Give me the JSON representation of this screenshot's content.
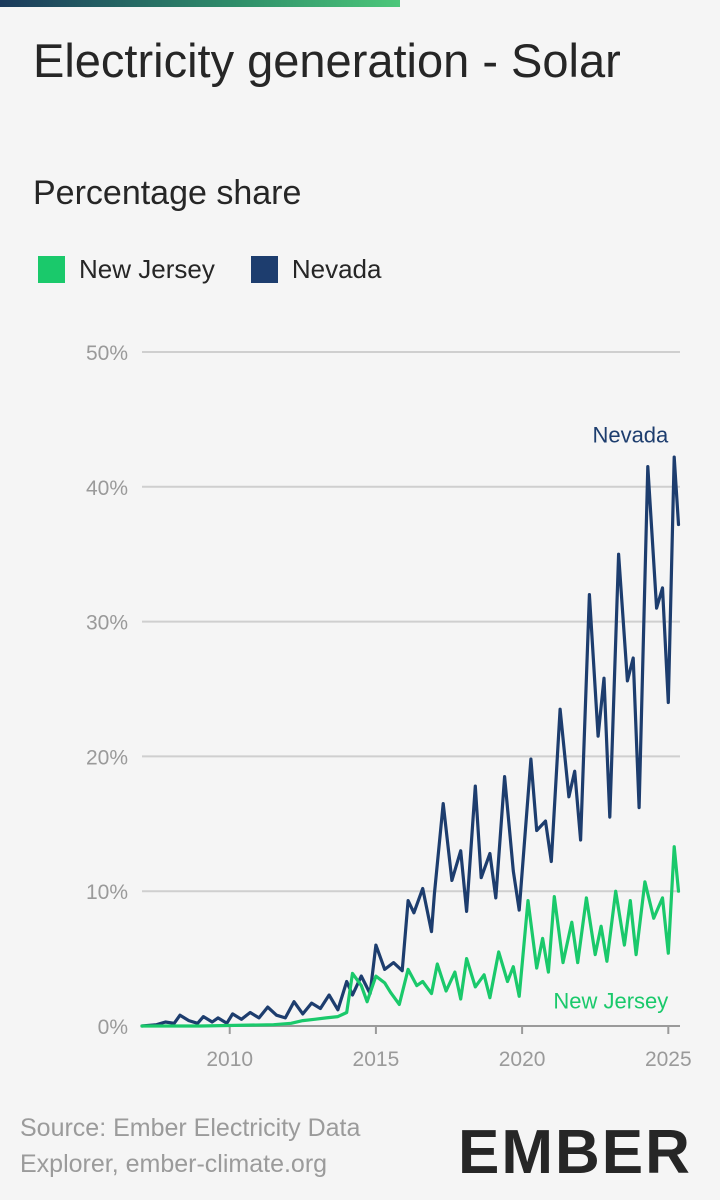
{
  "title": "Electricity generation - Solar",
  "subtitle": "Percentage share",
  "legend": [
    {
      "label": "New Jersey",
      "color": "#1ac96b"
    },
    {
      "label": "Nevada",
      "color": "#1d3d6e"
    }
  ],
  "source": "Source: Ember Electricity Data Explorer, ember-climate.org",
  "logo": "EMBER",
  "chart_data": {
    "type": "line",
    "title": "Electricity generation - Solar",
    "ylabel": "Percentage share",
    "xlabel": "",
    "ylim": [
      0,
      50
    ],
    "xlim": [
      2007.0,
      2025.4
    ],
    "y_ticks": [
      "0%",
      "10%",
      "20%",
      "30%",
      "40%",
      "50%"
    ],
    "y_tick_values": [
      0,
      10,
      20,
      30,
      40,
      50
    ],
    "x_ticks": [
      "2010",
      "2015",
      "2020",
      "2025"
    ],
    "x_tick_values": [
      2010,
      2015,
      2020,
      2025
    ],
    "grid": true,
    "series": [
      {
        "name": "Nevada",
        "color": "#1d3d6e",
        "x": [
          2007.0,
          2007.5,
          2007.8,
          2008.1,
          2008.3,
          2008.6,
          2008.9,
          2009.1,
          2009.4,
          2009.6,
          2009.9,
          2010.1,
          2010.4,
          2010.7,
          2011.0,
          2011.3,
          2011.6,
          2011.9,
          2012.2,
          2012.5,
          2012.8,
          2013.1,
          2013.4,
          2013.7,
          2014.0,
          2014.2,
          2014.5,
          2014.8,
          2015.0,
          2015.3,
          2015.6,
          2015.9,
          2016.1,
          2016.3,
          2016.6,
          2016.9,
          2017.0,
          2017.3,
          2017.6,
          2017.9,
          2018.1,
          2018.4,
          2018.6,
          2018.9,
          2019.1,
          2019.4,
          2019.7,
          2019.9,
          2020.3,
          2020.5,
          2020.8,
          2021.0,
          2021.3,
          2021.6,
          2021.8,
          2022.0,
          2022.3,
          2022.6,
          2022.8,
          2023.0,
          2023.3,
          2023.6,
          2023.8,
          2024.0,
          2024.3,
          2024.6,
          2024.8,
          2025.0,
          2025.2,
          2025.35
        ],
        "values": [
          0.0,
          0.1,
          0.3,
          0.2,
          0.8,
          0.4,
          0.2,
          0.7,
          0.3,
          0.6,
          0.2,
          0.9,
          0.5,
          1.0,
          0.6,
          1.4,
          0.8,
          0.6,
          1.8,
          0.9,
          1.7,
          1.3,
          2.3,
          1.2,
          3.3,
          2.3,
          3.7,
          2.4,
          6.0,
          4.2,
          4.7,
          4.1,
          9.3,
          8.4,
          10.2,
          7.0,
          9.8,
          16.5,
          10.8,
          13.0,
          8.5,
          17.8,
          11.0,
          12.8,
          9.5,
          18.5,
          11.5,
          8.6,
          19.8,
          14.5,
          15.2,
          12.2,
          23.5,
          17.0,
          18.9,
          13.8,
          32.0,
          21.5,
          25.8,
          15.5,
          35.0,
          25.6,
          27.3,
          16.2,
          41.5,
          31.0,
          32.5,
          24.0,
          42.2,
          37.2
        ]
      },
      {
        "name": "New Jersey",
        "color": "#1ac96b",
        "x": [
          2007.0,
          2009.0,
          2011.5,
          2012.1,
          2012.5,
          2012.9,
          2013.3,
          2013.7,
          2014.0,
          2014.2,
          2014.5,
          2014.7,
          2015.0,
          2015.3,
          2015.5,
          2015.8,
          2016.1,
          2016.4,
          2016.6,
          2016.9,
          2017.1,
          2017.4,
          2017.7,
          2017.9,
          2018.1,
          2018.4,
          2018.7,
          2018.9,
          2019.2,
          2019.5,
          2019.7,
          2019.9,
          2020.2,
          2020.5,
          2020.7,
          2020.9,
          2021.1,
          2021.4,
          2021.7,
          2021.9,
          2022.2,
          2022.5,
          2022.7,
          2022.9,
          2023.2,
          2023.5,
          2023.7,
          2023.9,
          2024.2,
          2024.5,
          2024.8,
          2025.0,
          2025.2,
          2025.35
        ],
        "values": [
          0.0,
          0.0,
          0.1,
          0.2,
          0.4,
          0.5,
          0.6,
          0.7,
          1.0,
          3.9,
          3.0,
          1.8,
          3.7,
          3.2,
          2.5,
          1.6,
          4.2,
          3.0,
          3.3,
          2.4,
          4.6,
          2.6,
          4.0,
          2.0,
          5.0,
          2.9,
          3.8,
          2.1,
          5.5,
          3.3,
          4.4,
          2.2,
          9.3,
          4.3,
          6.5,
          4.0,
          9.6,
          4.7,
          7.7,
          4.7,
          9.5,
          5.3,
          7.4,
          4.8,
          10.0,
          6.0,
          9.3,
          5.3,
          10.7,
          8.0,
          9.5,
          5.4,
          13.3,
          10.0
        ]
      }
    ],
    "annotations": [
      {
        "text": "Nevada",
        "series": "Nevada"
      },
      {
        "text": "New Jersey",
        "series": "New Jersey"
      }
    ]
  }
}
